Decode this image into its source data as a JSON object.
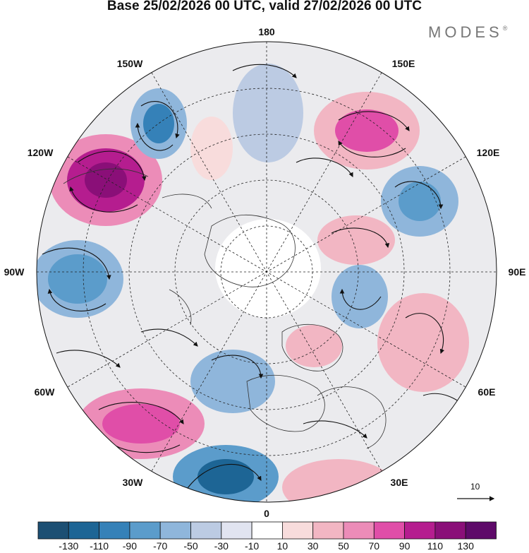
{
  "header": {
    "title": "Base 25/02/2026 00 UTC, valid 27/02/2026 00 UTC",
    "brand": "MODES",
    "brand_mark": "®"
  },
  "map_labels": {
    "n180": "180",
    "w150": "150W",
    "e150": "150E",
    "w120": "120W",
    "e120": "120E",
    "w90": "90W",
    "e90": "90E",
    "w60": "60W",
    "e60": "60E",
    "w30": "30W",
    "e30": "30E",
    "s0": "0"
  },
  "reference_vector": {
    "label": "10"
  },
  "colorbar": {
    "colors": [
      "#1c4f73",
      "#1d6595",
      "#3581b8",
      "#5b9ccb",
      "#8fb6db",
      "#bccbe3",
      "#e1e4f0",
      "#ffffff",
      "#f8dcdc",
      "#f2b6c3",
      "#ec8cb8",
      "#e04ea8",
      "#b51d8f",
      "#8a0f78",
      "#5e0a69"
    ],
    "ticks": [
      "-130",
      "-110",
      "-90",
      "-70",
      "-50",
      "-30",
      "-10",
      "10",
      "30",
      "50",
      "70",
      "90",
      "110",
      "130"
    ]
  }
}
